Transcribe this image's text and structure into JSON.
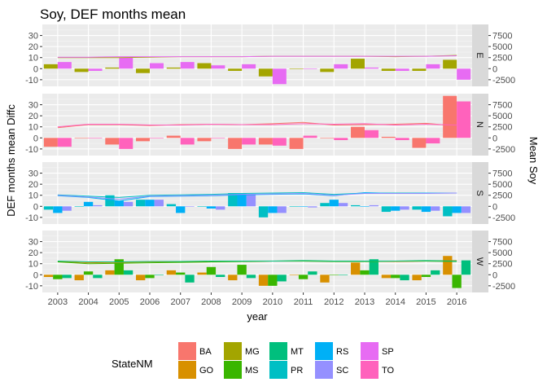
{
  "chart_data": {
    "type": "bar",
    "title": "Soy, DEF months mean",
    "xlabel": "year",
    "ylabel": "DEF months mean Diffc",
    "ylabel_right": "Mean Soy",
    "categories": [
      "2003",
      "2004",
      "2005",
      "2006",
      "2007",
      "2008",
      "2009",
      "2010",
      "2011",
      "2012",
      "2013",
      "2014",
      "2015",
      "2016"
    ],
    "ylim": [
      -16,
      40
    ],
    "y_ticks": [
      -10,
      0,
      10,
      20,
      30
    ],
    "y_tick_labels": [
      "-10",
      "0",
      "10",
      "20",
      "30"
    ],
    "y2_ticks": [
      -2500,
      0,
      2500,
      5000,
      7500
    ],
    "y2_tick_labels": [
      "-2500",
      "0",
      "2500",
      "5000",
      "7500"
    ],
    "y2_scale_note_per_unit": 250,
    "legend": {
      "title": "StateNM",
      "entries": [
        "BA",
        "GO",
        "MG",
        "MS",
        "MT",
        "PR",
        "RS",
        "SC",
        "SP",
        "TO"
      ],
      "placement": "bottom"
    },
    "colors": {
      "BA": "#F8766D",
      "GO": "#D89000",
      "MG": "#A3A500",
      "MS": "#39B600",
      "MT": "#00BF7D",
      "PR": "#00BFC4",
      "RS": "#00B0F6",
      "SC": "#9590FF",
      "SP": "#E76BF3",
      "TO": "#FF62BC"
    },
    "panels": [
      {
        "label": "E",
        "states": [
          "MG",
          "SP"
        ],
        "bars": {
          "MG": [
            4,
            -3,
            1,
            -4,
            1,
            5,
            -2,
            -7,
            0,
            -3,
            9,
            -2,
            -2,
            8
          ],
          "SP": [
            6,
            -2,
            10,
            5,
            6,
            3,
            4,
            -14,
            0,
            4,
            1,
            -2,
            4,
            -10
          ]
        },
        "lines": {
          "MG": [
            2500,
            2500,
            2500,
            2600,
            2700,
            2700,
            2700,
            2800,
            2800,
            2800,
            2800,
            2700,
            2800,
            3000
          ],
          "SP": [
            2600,
            2600,
            2700,
            2700,
            2700,
            2700,
            2700,
            2800,
            2800,
            2800,
            2800,
            2800,
            2800,
            2900
          ]
        }
      },
      {
        "label": "N",
        "states": [
          "BA",
          "TO"
        ],
        "bars": {
          "BA": [
            -8,
            0,
            -6,
            -3,
            2,
            -3,
            -10,
            -6,
            -10,
            0,
            10,
            1,
            -9,
            38
          ],
          "TO": [
            -8,
            0,
            -10,
            0,
            -6,
            0,
            -6,
            -7,
            2,
            -2,
            7,
            -2,
            -5,
            33
          ]
        },
        "lines": {
          "BA": [
            2300,
            3000,
            3000,
            2800,
            3000,
            3100,
            3000,
            3200,
            3500,
            2900,
            3000,
            3100,
            3300,
            2700
          ],
          "TO": [
            2500,
            3100,
            3100,
            2900,
            2900,
            3100,
            3000,
            3000,
            3200,
            3100,
            3200,
            2900,
            3100,
            2900
          ]
        }
      },
      {
        "label": "S",
        "states": [
          "PR",
          "RS",
          "SC"
        ],
        "bars": {
          "PR": [
            -3,
            0,
            10,
            6,
            2,
            0,
            12,
            -10,
            0,
            3,
            1,
            -5,
            -3,
            -9
          ],
          "RS": [
            -6,
            4,
            5,
            6,
            -6,
            -2,
            12,
            -6,
            0,
            6,
            0,
            -4,
            -5,
            -6
          ],
          "SC": [
            -4,
            1,
            4,
            6,
            0,
            -3,
            11,
            -6,
            -1,
            3,
            1,
            -3,
            -4,
            -6
          ]
        },
        "lines": {
          "PR": [
            2600,
            2300,
            2000,
            2500,
            2600,
            2700,
            2900,
            3000,
            3100,
            2700,
            3000,
            3000,
            3000,
            3000
          ],
          "RS": [
            2400,
            2000,
            1200,
            2200,
            2300,
            2400,
            2600,
            2700,
            2800,
            2400,
            3100,
            2900,
            3000,
            3000
          ],
          "SC": [
            2500,
            2100,
            1600,
            2300,
            2400,
            2500,
            2700,
            2800,
            2900,
            2500,
            2900,
            2900,
            2900,
            3000
          ]
        }
      },
      {
        "label": "W",
        "states": [
          "GO",
          "MS",
          "MT"
        ],
        "bars": {
          "GO": [
            -2,
            -5,
            4,
            -5,
            4,
            2,
            -5,
            -10,
            0,
            -7,
            11,
            -3,
            -5,
            17
          ],
          "MS": [
            -4,
            3,
            14,
            -3,
            2,
            7,
            9,
            -10,
            -4,
            0,
            4,
            -3,
            -2,
            -12
          ],
          "MT": [
            -3,
            -3,
            4,
            0,
            -7,
            -2,
            -3,
            -6,
            3,
            0,
            14,
            -5,
            4,
            13
          ]
        },
        "lines": {
          "GO": [
            3000,
            2700,
            2800,
            2900,
            2900,
            3000,
            3000,
            3100,
            3100,
            3100,
            3100,
            3000,
            3100,
            3200
          ],
          "MS": [
            2900,
            2500,
            2600,
            2700,
            2800,
            2900,
            3000,
            3100,
            3100,
            3000,
            3000,
            3100,
            3100,
            3000
          ],
          "MT": [
            3100,
            2900,
            2900,
            3000,
            3000,
            3100,
            3100,
            3100,
            3200,
            3100,
            3100,
            3100,
            3200,
            3100
          ]
        }
      }
    ]
  }
}
